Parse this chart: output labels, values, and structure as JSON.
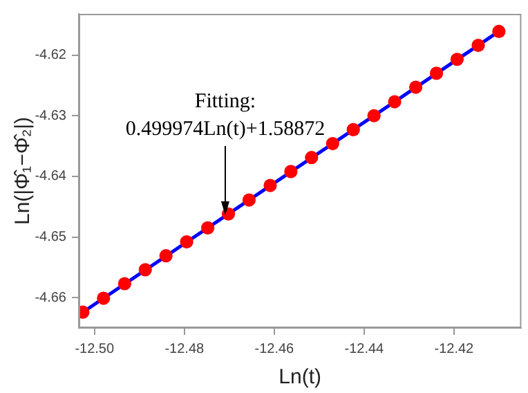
{
  "chart_data": {
    "type": "scatter",
    "xlabel": "Ln(t)",
    "ylabel": "Ln(|Φ̂₁−Φ̂₂|)",
    "xlim": [
      -12.5035,
      -12.405
    ],
    "xticks": [
      {
        "value": -12.5,
        "label": "-12.50"
      },
      {
        "value": -12.48,
        "label": "-12.48"
      },
      {
        "value": -12.46,
        "label": "-12.46"
      },
      {
        "value": -12.44,
        "label": "-12.44"
      },
      {
        "value": -12.42,
        "label": "-12.42"
      }
    ],
    "ylim": [
      -4.665,
      -4.6132
    ],
    "yticks": [
      {
        "value": -4.66,
        "label": "-4.66"
      },
      {
        "value": -4.65,
        "label": "-4.65"
      },
      {
        "value": -4.64,
        "label": "-4.64"
      },
      {
        "value": -4.63,
        "label": "-4.63"
      },
      {
        "value": -4.62,
        "label": "-4.62"
      }
    ],
    "grid": false,
    "legend": false,
    "marker": "circle",
    "series": [
      {
        "type": "line",
        "color": "#0000ff",
        "marker": "none",
        "line_style": "solid",
        "x": [
          -12.5026,
          -12.41
        ],
        "values": [
          -4.6624,
          -4.6161
        ]
      },
      {
        "type": "scatter",
        "color": "#ff0000",
        "x": [
          -12.5026,
          -12.498,
          -12.4933,
          -12.4887,
          -12.4841,
          -12.4795,
          -12.4748,
          -12.4702,
          -12.4656,
          -12.4609,
          -12.4563,
          -12.4517,
          -12.447,
          -12.4424,
          -12.4378,
          -12.4332,
          -12.4285,
          -12.4239,
          -12.4193,
          -12.4146,
          -12.41
        ],
        "values": [
          -4.6624,
          -4.6601,
          -4.6577,
          -4.6554,
          -4.6531,
          -4.6508,
          -4.6485,
          -4.6462,
          -4.6439,
          -4.6415,
          -4.6392,
          -4.6369,
          -4.6346,
          -4.6323,
          -4.63,
          -4.6277,
          -4.6253,
          -4.623,
          -4.6207,
          -4.6184,
          -4.6161
        ]
      }
    ],
    "annotations": [
      "Fitting:",
      {
        "text": "0.499974Ln(t)+1.58872",
        "x": -12.4709,
        "y": -4.6464
      }
    ]
  }
}
